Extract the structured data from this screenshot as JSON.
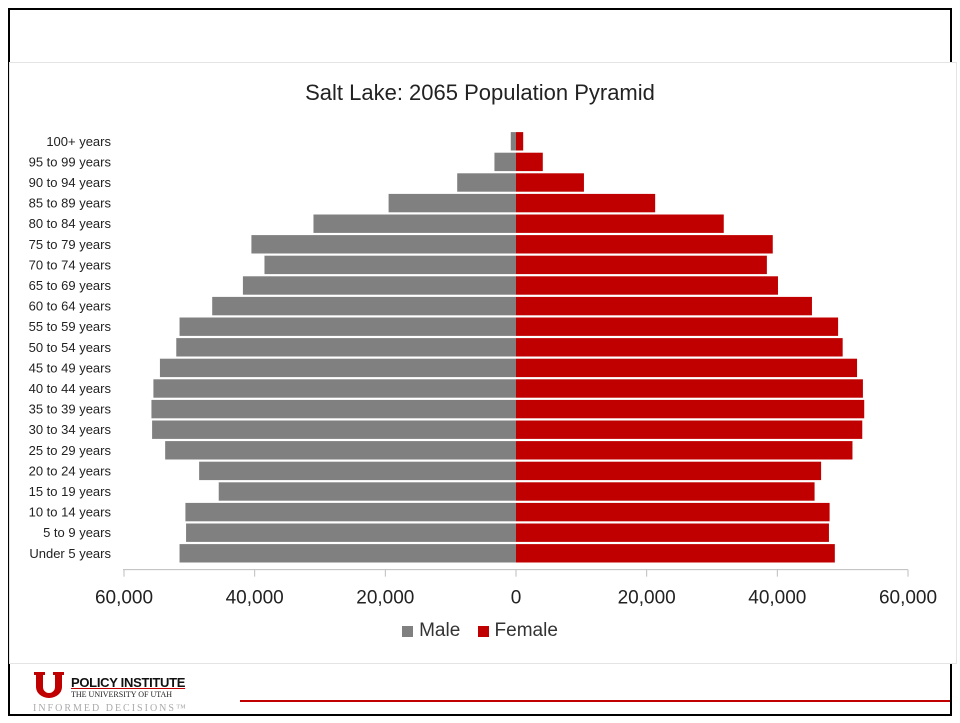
{
  "footer": {
    "org_name": "POLICY INSTITUTE",
    "university": "THE UNIVERSITY OF UTAH",
    "tagline": "INFORMED DECISIONS™"
  },
  "colors": {
    "male": "#808080",
    "female": "#c00000",
    "accent": "#c00000"
  },
  "chart_data": {
    "type": "bar",
    "orientation": "horizontal-pyramid",
    "title": "Salt Lake: 2065 Population Pyramid",
    "categories": [
      "Under 5 years",
      "5 to 9 years",
      "10 to 14 years",
      "15 to 19 years",
      "20 to 24 years",
      "25 to 29 years",
      "30 to 34 years",
      "35 to 39 years",
      "40 to 44 years",
      "45 to 49 years",
      "50 to 54 years",
      "55 to 59 years",
      "60 to 64 years",
      "65 to 69 years",
      "70 to 74 years",
      "75 to 79 years",
      "80 to 84 years",
      "85 to 89 years",
      "90 to 94 years",
      "95 to 99 years",
      "100+ years"
    ],
    "series": [
      {
        "name": "Male",
        "values": [
          51500,
          50500,
          50600,
          45500,
          48500,
          53700,
          55700,
          55800,
          55500,
          54500,
          52000,
          51500,
          46500,
          41800,
          38500,
          40500,
          31000,
          19500,
          9000,
          3300,
          800
        ]
      },
      {
        "name": "Female",
        "values": [
          48800,
          47900,
          48000,
          45700,
          46700,
          51500,
          53000,
          53300,
          53100,
          52200,
          50000,
          49300,
          45300,
          40100,
          38400,
          39300,
          31800,
          21300,
          10400,
          4100,
          1100
        ]
      }
    ],
    "xlim": [
      -60000,
      60000
    ],
    "xticks": [
      "60,000",
      "40,000",
      "20,000",
      "0",
      "20,000",
      "40,000",
      "60,000"
    ],
    "xtick_values": [
      -60000,
      -40000,
      -20000,
      0,
      20000,
      40000,
      60000
    ],
    "legend": [
      "Male",
      "Female"
    ],
    "legend_position": "bottom-center",
    "grid": false
  }
}
